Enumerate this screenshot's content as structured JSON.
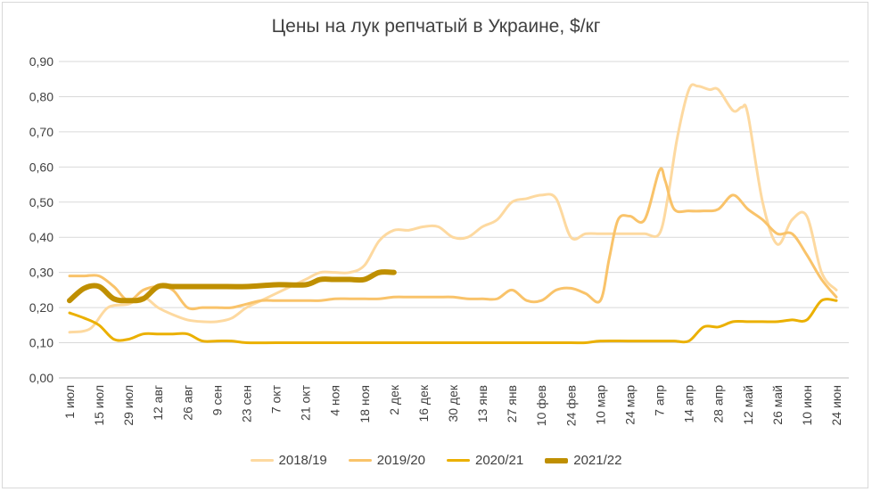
{
  "chart_data": {
    "type": "line",
    "title": "Цены на лук репчатый в Украине, $/кг",
    "ylim": [
      0,
      0.9
    ],
    "yticks": [
      "0,00",
      "0,10",
      "0,20",
      "0,30",
      "0,40",
      "0,50",
      "0,60",
      "0,70",
      "0,80",
      "0,90"
    ],
    "categories": [
      "1 июл",
      "15 июл",
      "29 июл",
      "12 авг",
      "26 авг",
      "9 сен",
      "23 сен",
      "7 окт",
      "21 окт",
      "4 ноя",
      "18 ноя",
      "2 дек",
      "16 дек",
      "30 дек",
      "13 янв",
      "27 янв",
      "10 фев",
      "24 фев",
      "10 мар",
      "24 мар",
      "7 апр",
      "14 апр",
      "28 апр",
      "12 май",
      "26 май",
      "10 июн",
      "24 июн"
    ],
    "grid": true,
    "legend": "bottom",
    "series": [
      {
        "name": "2018/19",
        "color": "#FDD9A0",
        "width": 3,
        "points": [
          [
            0,
            0.13
          ],
          [
            0.7,
            0.14
          ],
          [
            1.3,
            0.2
          ],
          [
            2,
            0.21
          ],
          [
            2.5,
            0.23
          ],
          [
            3,
            0.2
          ],
          [
            3.5,
            0.18
          ],
          [
            4,
            0.165
          ],
          [
            4.5,
            0.16
          ],
          [
            5,
            0.16
          ],
          [
            5.5,
            0.17
          ],
          [
            6,
            0.2
          ],
          [
            6.5,
            0.22
          ],
          [
            7,
            0.24
          ],
          [
            7.5,
            0.26
          ],
          [
            8,
            0.28
          ],
          [
            8.5,
            0.3
          ],
          [
            9,
            0.3
          ],
          [
            9.5,
            0.3
          ],
          [
            10,
            0.32
          ],
          [
            10.5,
            0.39
          ],
          [
            11,
            0.42
          ],
          [
            11.5,
            0.42
          ],
          [
            12,
            0.43
          ],
          [
            12.5,
            0.43
          ],
          [
            13,
            0.4
          ],
          [
            13.5,
            0.4
          ],
          [
            14,
            0.43
          ],
          [
            14.5,
            0.45
          ],
          [
            15,
            0.5
          ],
          [
            15.5,
            0.51
          ],
          [
            16,
            0.52
          ],
          [
            16.5,
            0.51
          ],
          [
            17,
            0.4
          ],
          [
            17.5,
            0.41
          ],
          [
            18,
            0.41
          ],
          [
            18.5,
            0.41
          ],
          [
            19,
            0.41
          ],
          [
            19.5,
            0.41
          ],
          [
            20,
            0.41
          ],
          [
            20.3,
            0.52
          ],
          [
            20.6,
            0.68
          ],
          [
            21,
            0.82
          ],
          [
            21.3,
            0.83
          ],
          [
            21.7,
            0.82
          ],
          [
            22,
            0.82
          ],
          [
            22.5,
            0.76
          ],
          [
            22.8,
            0.77
          ],
          [
            23,
            0.75
          ],
          [
            23.5,
            0.5
          ],
          [
            24,
            0.38
          ],
          [
            24.5,
            0.45
          ],
          [
            25,
            0.46
          ],
          [
            25.5,
            0.3
          ],
          [
            26,
            0.25
          ]
        ]
      },
      {
        "name": "2019/20",
        "color": "#F9C36A",
        "width": 3,
        "points": [
          [
            0,
            0.29
          ],
          [
            0.5,
            0.29
          ],
          [
            1,
            0.29
          ],
          [
            1.5,
            0.26
          ],
          [
            2,
            0.22
          ],
          [
            2.5,
            0.25
          ],
          [
            3,
            0.26
          ],
          [
            3.5,
            0.25
          ],
          [
            4,
            0.2
          ],
          [
            4.5,
            0.2
          ],
          [
            5,
            0.2
          ],
          [
            5.5,
            0.2
          ],
          [
            6,
            0.21
          ],
          [
            6.5,
            0.22
          ],
          [
            7,
            0.22
          ],
          [
            7.5,
            0.22
          ],
          [
            8,
            0.22
          ],
          [
            8.5,
            0.22
          ],
          [
            9,
            0.225
          ],
          [
            9.5,
            0.225
          ],
          [
            10,
            0.225
          ],
          [
            10.5,
            0.225
          ],
          [
            11,
            0.23
          ],
          [
            11.5,
            0.23
          ],
          [
            12,
            0.23
          ],
          [
            12.5,
            0.23
          ],
          [
            13,
            0.23
          ],
          [
            13.5,
            0.225
          ],
          [
            14,
            0.225
          ],
          [
            14.5,
            0.225
          ],
          [
            15,
            0.25
          ],
          [
            15.5,
            0.22
          ],
          [
            16,
            0.22
          ],
          [
            16.5,
            0.25
          ],
          [
            17,
            0.255
          ],
          [
            17.5,
            0.24
          ],
          [
            18,
            0.22
          ],
          [
            18.3,
            0.34
          ],
          [
            18.6,
            0.45
          ],
          [
            19,
            0.46
          ],
          [
            19.5,
            0.45
          ],
          [
            20,
            0.59
          ],
          [
            20.2,
            0.56
          ],
          [
            20.5,
            0.48
          ],
          [
            21,
            0.475
          ],
          [
            21.5,
            0.475
          ],
          [
            22,
            0.48
          ],
          [
            22.5,
            0.52
          ],
          [
            23,
            0.48
          ],
          [
            23.5,
            0.45
          ],
          [
            24,
            0.41
          ],
          [
            24.5,
            0.41
          ],
          [
            25,
            0.35
          ],
          [
            25.5,
            0.28
          ],
          [
            26,
            0.23
          ]
        ]
      },
      {
        "name": "2020/21",
        "color": "#EBB000",
        "width": 3,
        "points": [
          [
            0,
            0.185
          ],
          [
            0.5,
            0.17
          ],
          [
            1,
            0.15
          ],
          [
            1.5,
            0.11
          ],
          [
            2,
            0.11
          ],
          [
            2.5,
            0.125
          ],
          [
            3,
            0.125
          ],
          [
            3.5,
            0.125
          ],
          [
            4,
            0.125
          ],
          [
            4.5,
            0.105
          ],
          [
            5,
            0.105
          ],
          [
            5.5,
            0.105
          ],
          [
            6,
            0.1
          ],
          [
            7,
            0.1
          ],
          [
            8,
            0.1
          ],
          [
            9,
            0.1
          ],
          [
            10,
            0.1
          ],
          [
            11,
            0.1
          ],
          [
            12,
            0.1
          ],
          [
            13,
            0.1
          ],
          [
            14,
            0.1
          ],
          [
            15,
            0.1
          ],
          [
            16,
            0.1
          ],
          [
            17,
            0.1
          ],
          [
            17.5,
            0.1
          ],
          [
            18,
            0.105
          ],
          [
            19,
            0.105
          ],
          [
            20,
            0.105
          ],
          [
            20.5,
            0.105
          ],
          [
            21,
            0.105
          ],
          [
            21.5,
            0.145
          ],
          [
            22,
            0.145
          ],
          [
            22.5,
            0.16
          ],
          [
            23,
            0.16
          ],
          [
            23.5,
            0.16
          ],
          [
            24,
            0.16
          ],
          [
            24.5,
            0.165
          ],
          [
            25,
            0.165
          ],
          [
            25.5,
            0.22
          ],
          [
            26,
            0.22
          ]
        ]
      },
      {
        "name": "2021/22",
        "color": "#BF8F00",
        "width": 6,
        "points": [
          [
            0,
            0.22
          ],
          [
            0.5,
            0.255
          ],
          [
            1,
            0.26
          ],
          [
            1.5,
            0.225
          ],
          [
            2,
            0.22
          ],
          [
            2.5,
            0.225
          ],
          [
            3,
            0.26
          ],
          [
            3.5,
            0.26
          ],
          [
            4,
            0.26
          ],
          [
            5,
            0.26
          ],
          [
            6,
            0.26
          ],
          [
            7,
            0.265
          ],
          [
            8,
            0.265
          ],
          [
            8.5,
            0.28
          ],
          [
            9,
            0.28
          ],
          [
            9.5,
            0.28
          ],
          [
            10,
            0.28
          ],
          [
            10.5,
            0.3
          ],
          [
            11,
            0.3
          ]
        ]
      }
    ]
  }
}
